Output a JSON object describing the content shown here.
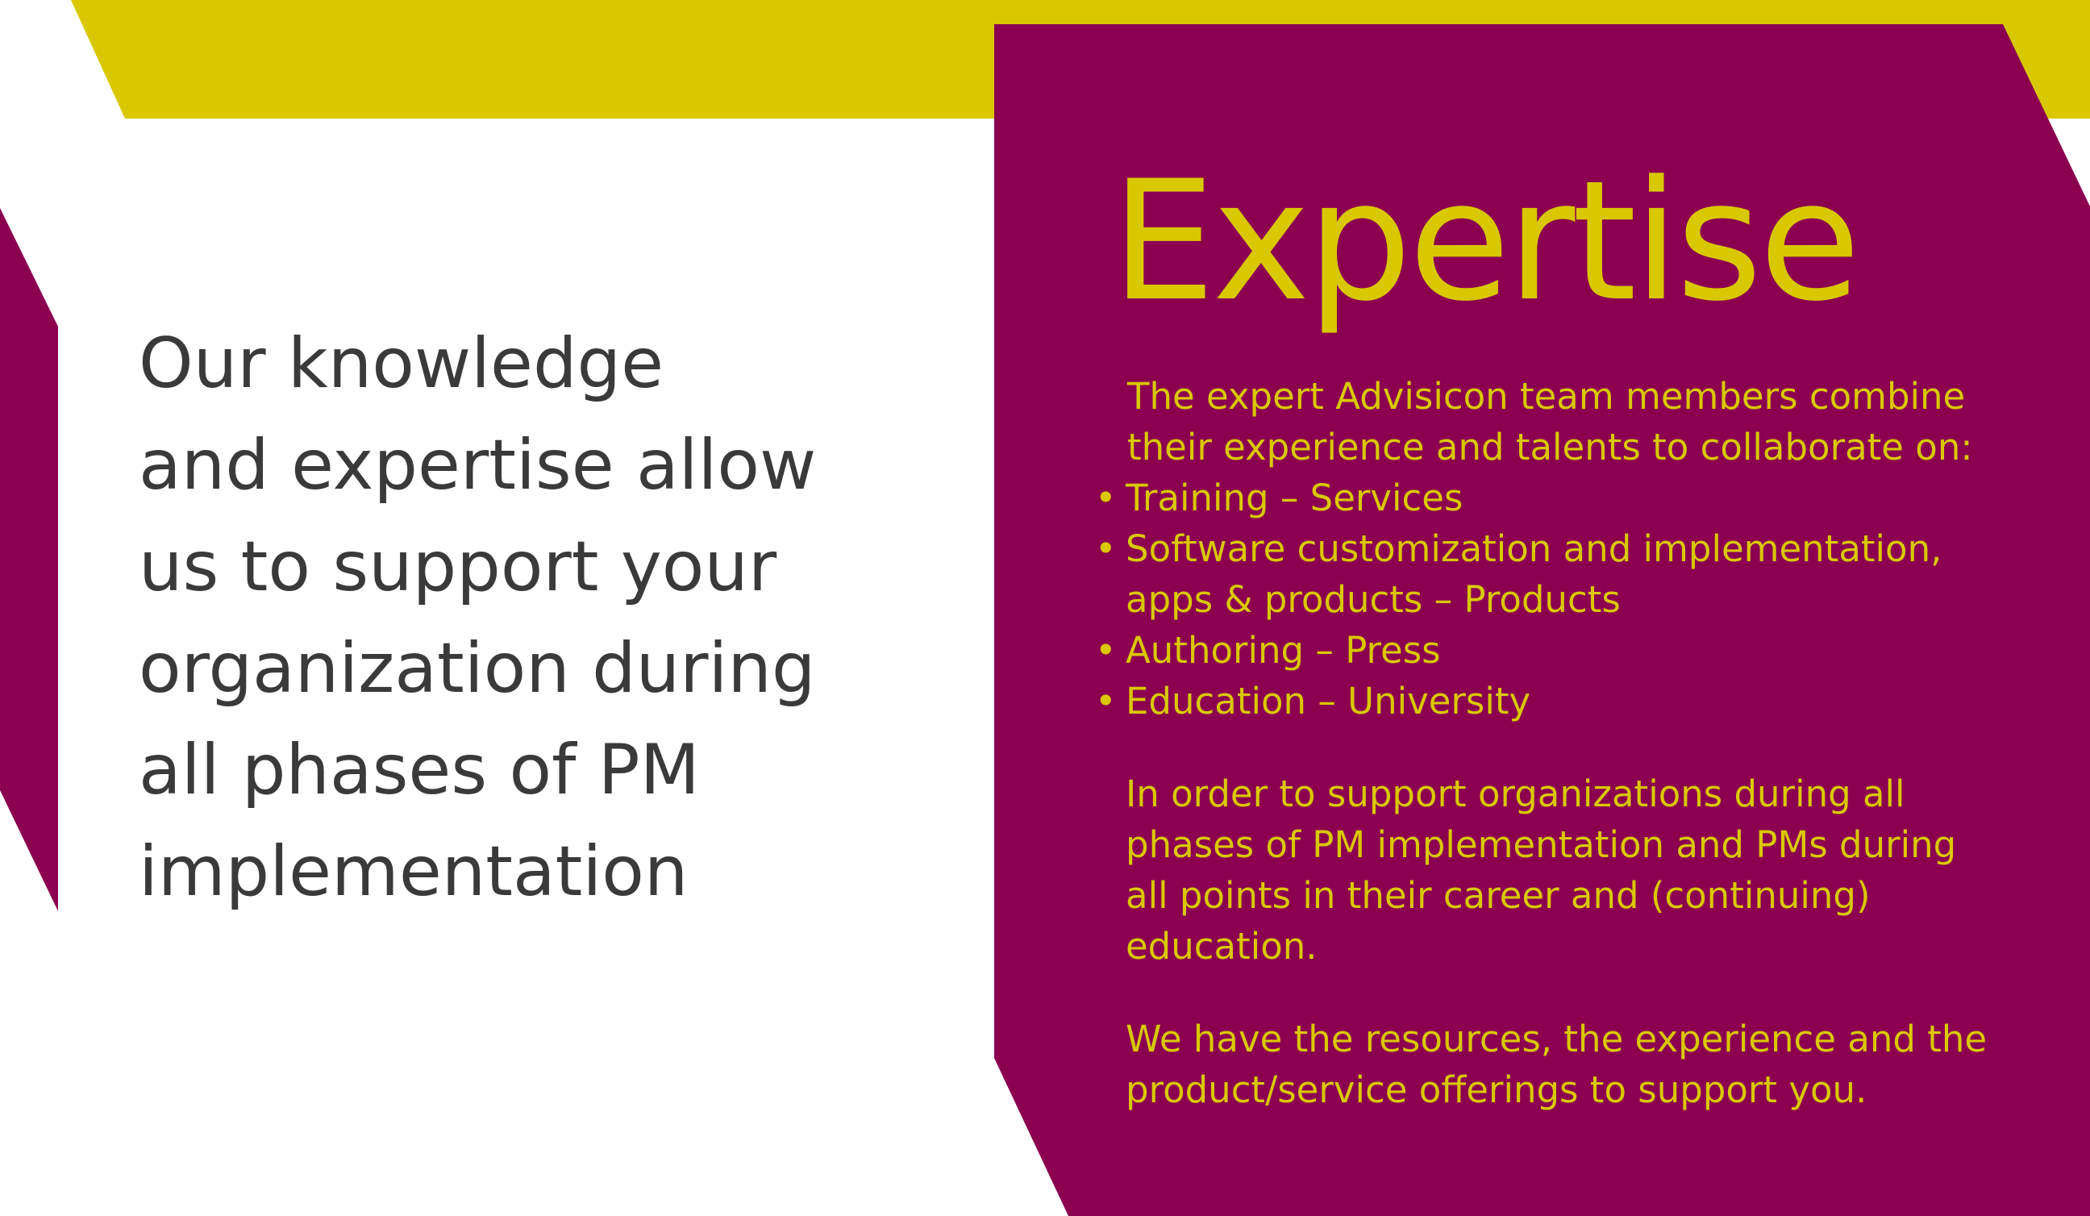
{
  "colors": {
    "accent_yellow": "#d9c800",
    "accent_magenta": "#8c0050",
    "text_dark": "#3a3a3a",
    "background": "#ffffff"
  },
  "left_statement": {
    "lines": [
      "Our knowledge",
      "and expertise allow",
      "us to support your",
      "organization during",
      "all phases of PM",
      "implementation"
    ]
  },
  "panel": {
    "title": "Expertise",
    "intro": [
      "The expert Advisicon team members combine",
      "their experience and talents to collaborate on:"
    ],
    "bullet_glyph": "•",
    "bullets": [
      [
        "Training – Services"
      ],
      [
        "Software customization and implementation,",
        "apps & products – Products"
      ],
      [
        "Authoring – Press"
      ],
      [
        "Education – University"
      ]
    ],
    "paragraph_2": [
      "In order to support organizations during all",
      "phases of PM implementation and PMs during",
      "all points in their career and (continuing)",
      "education."
    ],
    "paragraph_3": [
      "We have the resources, the experience and the",
      "product/service offerings to support you."
    ]
  }
}
